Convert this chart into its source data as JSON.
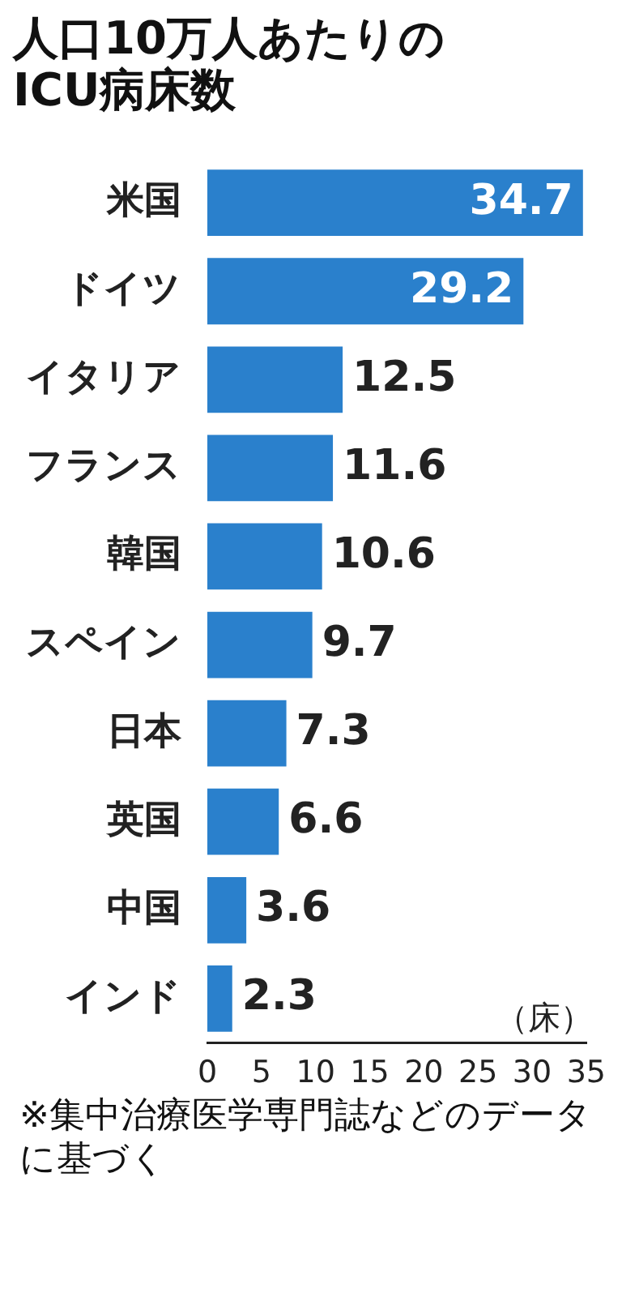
{
  "chart_data": {
    "type": "bar",
    "orientation": "horizontal",
    "title": "人口10万人あたりのICU病床数",
    "categories": [
      "米国",
      "ドイツ",
      "イタリア",
      "フランス",
      "韓国",
      "スペイン",
      "日本",
      "英国",
      "中国",
      "インド"
    ],
    "values": [
      34.7,
      29.2,
      12.5,
      11.6,
      10.6,
      9.7,
      7.3,
      6.6,
      3.6,
      2.3
    ],
    "color": "#2a80cc",
    "data_labels": true,
    "grid": false,
    "legend": false,
    "xlim": [
      0,
      35
    ],
    "xticks": [
      0,
      5,
      10,
      15,
      20,
      25,
      30,
      35
    ],
    "annotations": [
      "（床）",
      "※集中治療医学専門誌などのデータに基づく"
    ]
  }
}
